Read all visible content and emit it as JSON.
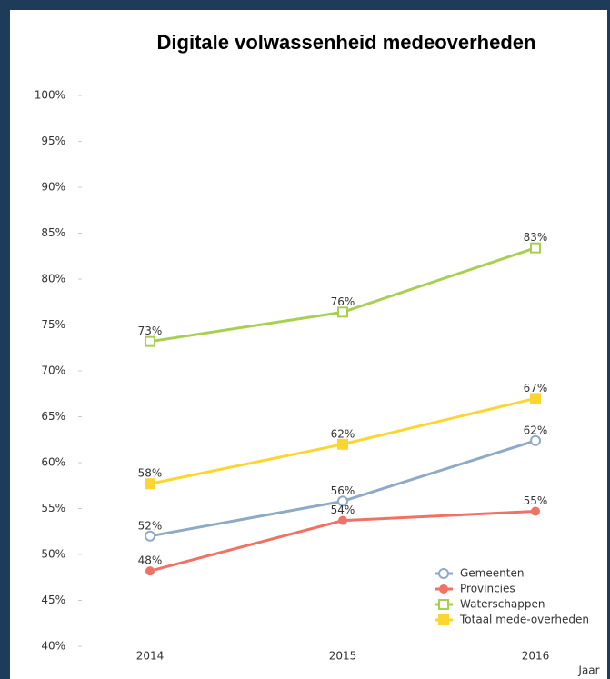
{
  "chart_data": {
    "type": "line",
    "title": "Digitale volwassenheid medeoverheden",
    "x_label": "Jaar",
    "categories": [
      "2014",
      "2015",
      "2016"
    ],
    "ylim": [
      40,
      100
    ],
    "yticks": [
      {
        "value": 40,
        "label": "40%"
      },
      {
        "value": 45,
        "label": "45%"
      },
      {
        "value": 50,
        "label": "50%"
      },
      {
        "value": 55,
        "label": "55%"
      },
      {
        "value": 60,
        "label": "60%"
      },
      {
        "value": 65,
        "label": "65%"
      },
      {
        "value": 70,
        "label": "70%"
      },
      {
        "value": 75,
        "label": "75%"
      },
      {
        "value": 80,
        "label": "80%"
      },
      {
        "value": 85,
        "label": "85%"
      },
      {
        "value": 90,
        "label": "90%"
      },
      {
        "value": 95,
        "label": "95%"
      },
      {
        "value": 100,
        "label": "100%"
      }
    ],
    "legend": "bottom-right",
    "series": [
      {
        "name": "Gemeenten",
        "color": "#8eaac8",
        "marker": "open-circle",
        "values": [
          52.0,
          55.8,
          62.4
        ],
        "value_labels": [
          "52%",
          "56%",
          "62%"
        ]
      },
      {
        "name": "Provincies",
        "color": "#f07264",
        "marker": "circle",
        "values": [
          48.2,
          53.7,
          54.7
        ],
        "value_labels": [
          "48%",
          "54%",
          "55%"
        ]
      },
      {
        "name": "Waterschappen",
        "color": "#a8d050",
        "marker": "open-square",
        "values": [
          73.2,
          76.4,
          83.4
        ],
        "value_labels": [
          "73%",
          "76%",
          "83%"
        ]
      },
      {
        "name": "Totaal mede-overheden",
        "color": "#fcd530",
        "marker": "square",
        "values": [
          57.7,
          62.0,
          67.0
        ],
        "value_labels": [
          "58%",
          "62%",
          "67%"
        ]
      }
    ]
  }
}
